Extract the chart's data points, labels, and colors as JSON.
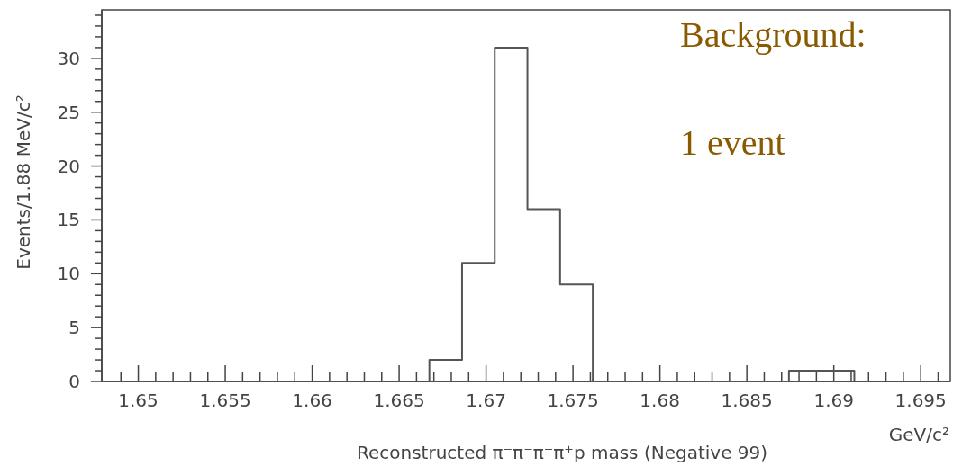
{
  "chart_data": {
    "type": "histogram",
    "xlabel": "Reconstructed π⁻π⁻π⁻π⁺p mass (Negative 99)",
    "ylabel": "Events/1.88 MeV/c²",
    "annotations": [
      "GeV/c²",
      "Background:",
      "1 event"
    ],
    "bins": [
      1.66674,
      1.66862,
      1.6705,
      1.67238,
      1.67426,
      1.67614,
      1.67802,
      1.6799,
      1.68178,
      1.68366,
      1.68554,
      1.68742,
      1.6893,
      1.69118
    ],
    "values": [
      2,
      11,
      31,
      16,
      9,
      0,
      0,
      0,
      0,
      0,
      0,
      1,
      1
    ],
    "color": "#555555",
    "xlim": [
      1.6479,
      1.6967
    ],
    "ylim": [
      0,
      34.5
    ],
    "xticks": [
      {
        "value": 1.649,
        "label": null
      },
      1.65,
      {
        "value": 1.651,
        "label": null
      },
      {
        "value": 1.652,
        "label": null
      },
      {
        "value": 1.653,
        "label": null
      },
      {
        "value": 1.654,
        "label": null
      },
      1.655,
      {
        "value": 1.656,
        "label": null
      },
      {
        "value": 1.657,
        "label": null
      },
      {
        "value": 1.658,
        "label": null
      },
      {
        "value": 1.659,
        "label": null
      },
      1.66,
      {
        "value": 1.661,
        "label": null
      },
      {
        "value": 1.662,
        "label": null
      },
      {
        "value": 1.663,
        "label": null
      },
      {
        "value": 1.664,
        "label": null
      },
      1.665,
      {
        "value": 1.666,
        "label": null
      },
      {
        "value": 1.667,
        "label": null
      },
      {
        "value": 1.668,
        "label": null
      },
      {
        "value": 1.669,
        "label": null
      },
      1.67,
      {
        "value": 1.671,
        "label": null
      },
      {
        "value": 1.672,
        "label": null
      },
      {
        "value": 1.673,
        "label": null
      },
      {
        "value": 1.674,
        "label": null
      },
      1.675,
      {
        "value": 1.676,
        "label": null
      },
      {
        "value": 1.677,
        "label": null
      },
      {
        "value": 1.678,
        "label": null
      },
      {
        "value": 1.679,
        "label": null
      },
      1.68,
      {
        "value": 1.681,
        "label": null
      },
      {
        "value": 1.682,
        "label": null
      },
      {
        "value": 1.683,
        "label": null
      },
      {
        "value": 1.684,
        "label": null
      },
      1.685,
      {
        "value": 1.686,
        "label": null
      },
      {
        "value": 1.687,
        "label": null
      },
      {
        "value": 1.688,
        "label": null
      },
      {
        "value": 1.689,
        "label": null
      },
      1.69,
      {
        "value": 1.691,
        "label": null
      },
      {
        "value": 1.692,
        "label": null
      },
      {
        "value": 1.693,
        "label": null
      },
      {
        "value": 1.694,
        "label": null
      },
      1.695,
      {
        "value": 1.696,
        "label": null
      }
    ],
    "yticks": [
      0,
      {
        "value": 1,
        "label": null
      },
      {
        "value": 2,
        "label": null
      },
      {
        "value": 3,
        "label": null
      },
      {
        "value": 4,
        "label": null
      },
      5,
      {
        "value": 6,
        "label": null
      },
      {
        "value": 7,
        "label": null
      },
      {
        "value": 8,
        "label": null
      },
      {
        "value": 9,
        "label": null
      },
      10,
      {
        "value": 11,
        "label": null
      },
      {
        "value": 12,
        "label": null
      },
      {
        "value": 13,
        "label": null
      },
      {
        "value": 14,
        "label": null
      },
      15,
      {
        "value": 16,
        "label": null
      },
      {
        "value": 17,
        "label": null
      },
      {
        "value": 18,
        "label": null
      },
      {
        "value": 19,
        "label": null
      },
      20,
      {
        "value": 21,
        "label": null
      },
      {
        "value": 22,
        "label": null
      },
      {
        "value": 23,
        "label": null
      },
      {
        "value": 24,
        "label": null
      },
      25,
      {
        "value": 26,
        "label": null
      },
      {
        "value": 27,
        "label": null
      },
      {
        "value": 28,
        "label": null
      },
      {
        "value": 29,
        "label": null
      },
      30,
      {
        "value": 31,
        "label": null
      },
      {
        "value": 32,
        "label": null
      },
      {
        "value": 33,
        "label": null
      },
      {
        "value": 34,
        "label": null
      }
    ]
  }
}
